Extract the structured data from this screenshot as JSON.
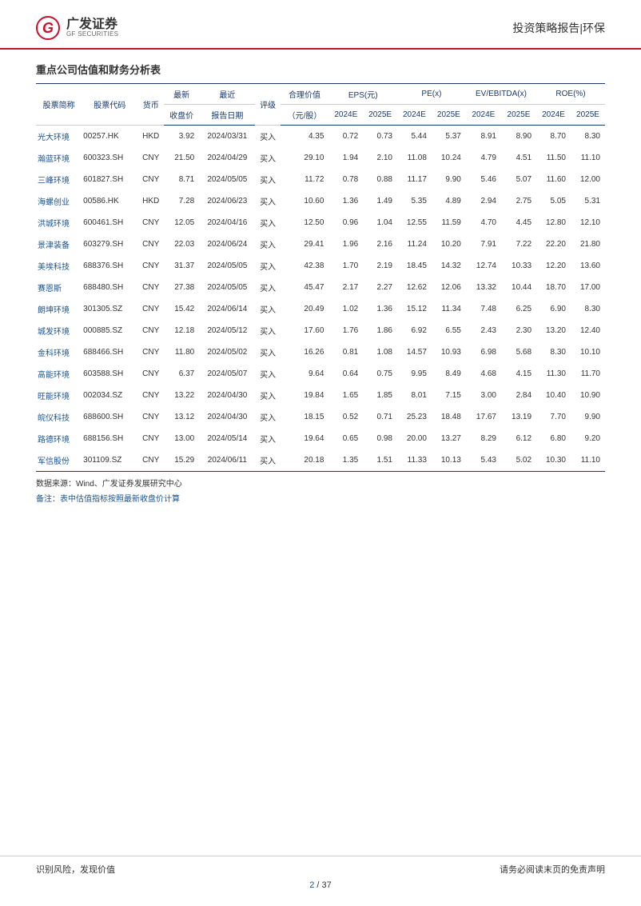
{
  "header": {
    "logo_cn": "广发证券",
    "logo_en": "GF SECURITIES",
    "right_text": "投资策略报告|环保"
  },
  "table": {
    "title": "重点公司估值和财务分析表",
    "columns_group": {
      "name": "股票简称",
      "code": "股票代码",
      "currency": "货币",
      "close": "最新",
      "report": "最近",
      "rating": "评级",
      "fair": "合理价值",
      "eps": "EPS(元)",
      "pe": "PE(x)",
      "evebitda": "EV/EBITDA(x)",
      "roe": "ROE(%)"
    },
    "columns_sub": {
      "close": "收盘价",
      "report": "报告日期",
      "fair": "（元/股）",
      "y2024": "2024E",
      "y2025": "2025E"
    },
    "rows": [
      {
        "name": "光大环境",
        "code": "00257.HK",
        "ccy": "HKD",
        "close": "3.92",
        "date": "2024/03/31",
        "rating": "买入",
        "fair": "4.35",
        "eps24": "0.72",
        "eps25": "0.73",
        "pe24": "5.44",
        "pe25": "5.37",
        "ev24": "8.91",
        "ev25": "8.90",
        "roe24": "8.70",
        "roe25": "8.30"
      },
      {
        "name": "瀚蓝环境",
        "code": "600323.SH",
        "ccy": "CNY",
        "close": "21.50",
        "date": "2024/04/29",
        "rating": "买入",
        "fair": "29.10",
        "eps24": "1.94",
        "eps25": "2.10",
        "pe24": "11.08",
        "pe25": "10.24",
        "ev24": "4.79",
        "ev25": "4.51",
        "roe24": "11.50",
        "roe25": "11.10"
      },
      {
        "name": "三峰环境",
        "code": "601827.SH",
        "ccy": "CNY",
        "close": "8.71",
        "date": "2024/05/05",
        "rating": "买入",
        "fair": "11.72",
        "eps24": "0.78",
        "eps25": "0.88",
        "pe24": "11.17",
        "pe25": "9.90",
        "ev24": "5.46",
        "ev25": "5.07",
        "roe24": "11.60",
        "roe25": "12.00"
      },
      {
        "name": "海螺创业",
        "code": "00586.HK",
        "ccy": "HKD",
        "close": "7.28",
        "date": "2024/06/23",
        "rating": "买入",
        "fair": "10.60",
        "eps24": "1.36",
        "eps25": "1.49",
        "pe24": "5.35",
        "pe25": "4.89",
        "ev24": "2.94",
        "ev25": "2.75",
        "roe24": "5.05",
        "roe25": "5.31"
      },
      {
        "name": "洪城环境",
        "code": "600461.SH",
        "ccy": "CNY",
        "close": "12.05",
        "date": "2024/04/16",
        "rating": "买入",
        "fair": "12.50",
        "eps24": "0.96",
        "eps25": "1.04",
        "pe24": "12.55",
        "pe25": "11.59",
        "ev24": "4.70",
        "ev25": "4.45",
        "roe24": "12.80",
        "roe25": "12.10"
      },
      {
        "name": "景津装备",
        "code": "603279.SH",
        "ccy": "CNY",
        "close": "22.03",
        "date": "2024/06/24",
        "rating": "买入",
        "fair": "29.41",
        "eps24": "1.96",
        "eps25": "2.16",
        "pe24": "11.24",
        "pe25": "10.20",
        "ev24": "7.91",
        "ev25": "7.22",
        "roe24": "22.20",
        "roe25": "21.80"
      },
      {
        "name": "美埃科技",
        "code": "688376.SH",
        "ccy": "CNY",
        "close": "31.37",
        "date": "2024/05/05",
        "rating": "买入",
        "fair": "42.38",
        "eps24": "1.70",
        "eps25": "2.19",
        "pe24": "18.45",
        "pe25": "14.32",
        "ev24": "12.74",
        "ev25": "10.33",
        "roe24": "12.20",
        "roe25": "13.60"
      },
      {
        "name": "赛恩斯",
        "code": "688480.SH",
        "ccy": "CNY",
        "close": "27.38",
        "date": "2024/05/05",
        "rating": "买入",
        "fair": "45.47",
        "eps24": "2.17",
        "eps25": "2.27",
        "pe24": "12.62",
        "pe25": "12.06",
        "ev24": "13.32",
        "ev25": "10.44",
        "roe24": "18.70",
        "roe25": "17.00"
      },
      {
        "name": "朗坤环境",
        "code": "301305.SZ",
        "ccy": "CNY",
        "close": "15.42",
        "date": "2024/06/14",
        "rating": "买入",
        "fair": "20.49",
        "eps24": "1.02",
        "eps25": "1.36",
        "pe24": "15.12",
        "pe25": "11.34",
        "ev24": "7.48",
        "ev25": "6.25",
        "roe24": "6.90",
        "roe25": "8.30"
      },
      {
        "name": "城发环境",
        "code": "000885.SZ",
        "ccy": "CNY",
        "close": "12.18",
        "date": "2024/05/12",
        "rating": "买入",
        "fair": "17.60",
        "eps24": "1.76",
        "eps25": "1.86",
        "pe24": "6.92",
        "pe25": "6.55",
        "ev24": "2.43",
        "ev25": "2.30",
        "roe24": "13.20",
        "roe25": "12.40"
      },
      {
        "name": "金科环境",
        "code": "688466.SH",
        "ccy": "CNY",
        "close": "11.80",
        "date": "2024/05/02",
        "rating": "买入",
        "fair": "16.26",
        "eps24": "0.81",
        "eps25": "1.08",
        "pe24": "14.57",
        "pe25": "10.93",
        "ev24": "6.98",
        "ev25": "5.68",
        "roe24": "8.30",
        "roe25": "10.10"
      },
      {
        "name": "高能环境",
        "code": "603588.SH",
        "ccy": "CNY",
        "close": "6.37",
        "date": "2024/05/07",
        "rating": "买入",
        "fair": "9.64",
        "eps24": "0.64",
        "eps25": "0.75",
        "pe24": "9.95",
        "pe25": "8.49",
        "ev24": "4.68",
        "ev25": "4.15",
        "roe24": "11.30",
        "roe25": "11.70"
      },
      {
        "name": "旺能环境",
        "code": "002034.SZ",
        "ccy": "CNY",
        "close": "13.22",
        "date": "2024/04/30",
        "rating": "买入",
        "fair": "19.84",
        "eps24": "1.65",
        "eps25": "1.85",
        "pe24": "8.01",
        "pe25": "7.15",
        "ev24": "3.00",
        "ev25": "2.84",
        "roe24": "10.40",
        "roe25": "10.90"
      },
      {
        "name": "皖仪科技",
        "code": "688600.SH",
        "ccy": "CNY",
        "close": "13.12",
        "date": "2024/04/30",
        "rating": "买入",
        "fair": "18.15",
        "eps24": "0.52",
        "eps25": "0.71",
        "pe24": "25.23",
        "pe25": "18.48",
        "ev24": "17.67",
        "ev25": "13.19",
        "roe24": "7.70",
        "roe25": "9.90"
      },
      {
        "name": "路德环境",
        "code": "688156.SH",
        "ccy": "CNY",
        "close": "13.00",
        "date": "2024/05/14",
        "rating": "买入",
        "fair": "19.64",
        "eps24": "0.65",
        "eps25": "0.98",
        "pe24": "20.00",
        "pe25": "13.27",
        "ev24": "8.29",
        "ev25": "6.12",
        "roe24": "6.80",
        "roe25": "9.20"
      },
      {
        "name": "军信股份",
        "code": "301109.SZ",
        "ccy": "CNY",
        "close": "15.29",
        "date": "2024/06/11",
        "rating": "买入",
        "fair": "20.18",
        "eps24": "1.35",
        "eps25": "1.51",
        "pe24": "11.33",
        "pe25": "10.13",
        "ev24": "5.43",
        "ev25": "5.02",
        "roe24": "10.30",
        "roe25": "11.10"
      }
    ],
    "source": "数据来源：Wind、广发证券发展研究中心",
    "note": "备注：表中估值指标按照最新收盘价计算"
  },
  "footer": {
    "left": "识别风险，发现价值",
    "right": "请务必阅读末页的免责声明",
    "page_current": "2",
    "page_sep": " / ",
    "page_total": "37"
  }
}
